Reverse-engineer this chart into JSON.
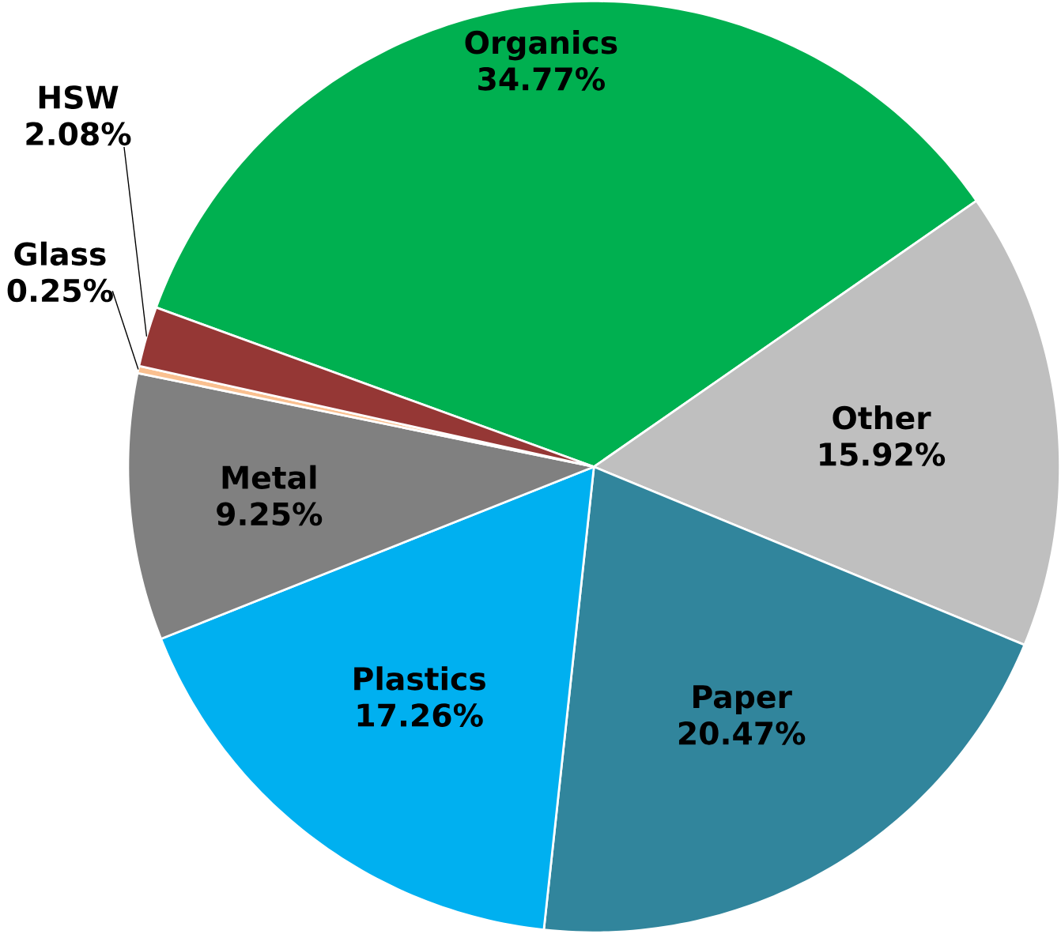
{
  "chart_data": {
    "type": "pie",
    "categories": [
      "Organics",
      "Other",
      "Paper",
      "Plastics",
      "Metal",
      "Glass",
      "HSW"
    ],
    "values": [
      34.77,
      15.92,
      20.47,
      17.26,
      9.25,
      0.25,
      2.08
    ],
    "value_labels": [
      "34.77%",
      "15.92%",
      "20.47%",
      "17.26%",
      "9.25%",
      "0.25%",
      "2.08%"
    ],
    "colors": [
      "#00b050",
      "#bfbfbf",
      "#31859c",
      "#00b0f0",
      "#808080",
      "#fac090",
      "#953735"
    ]
  }
}
